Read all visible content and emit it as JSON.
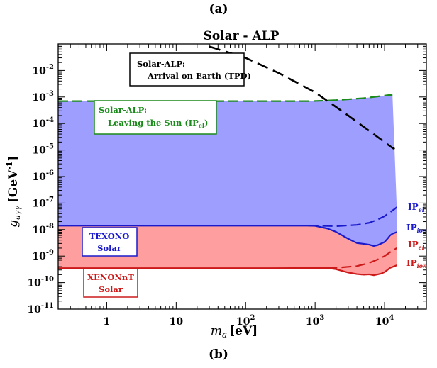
{
  "figure": {
    "top_label": "(a)",
    "bottom_label": "(b)"
  },
  "chart_data": {
    "type": "area",
    "title": "Solar - ALP",
    "xlabel_main": "m",
    "xlabel_sub": "a",
    "xlabel_unit": "[eV]",
    "ylabel_main": "g",
    "ylabel_sub": "aγγ",
    "ylabel_unit": "[GeV",
    "ylabel_unit_exp": "-1",
    "ylabel_unit_close": "]",
    "x_scale": "log",
    "y_scale": "log",
    "xlim": [
      0.2,
      40000
    ],
    "ylim": [
      1e-11,
      0.1
    ],
    "x_ticks": [
      {
        "v": 1,
        "base": "1",
        "exp": ""
      },
      {
        "v": 10,
        "base": "10",
        "exp": ""
      },
      {
        "v": 100,
        "base": "10",
        "exp": "2"
      },
      {
        "v": 1000,
        "base": "10",
        "exp": "3"
      },
      {
        "v": 10000,
        "base": "10",
        "exp": "4"
      }
    ],
    "y_ticks": [
      {
        "v": 1e-11,
        "base": "10",
        "exp": "-11"
      },
      {
        "v": 1e-10,
        "base": "10",
        "exp": "-10"
      },
      {
        "v": 1e-09,
        "base": "10",
        "exp": "-9"
      },
      {
        "v": 1e-08,
        "base": "10",
        "exp": "-8"
      },
      {
        "v": 1e-07,
        "base": "10",
        "exp": "-7"
      },
      {
        "v": 1e-06,
        "base": "10",
        "exp": "-6"
      },
      {
        "v": 1e-05,
        "base": "10",
        "exp": "-5"
      },
      {
        "v": 0.0001,
        "base": "10",
        "exp": "-4"
      },
      {
        "v": 0.001,
        "base": "10",
        "exp": "-3"
      },
      {
        "v": 0.01,
        "base": "10",
        "exp": "-2"
      }
    ],
    "series": [
      {
        "name": "Solar-ALP: Leaving the Sun (IPel)",
        "color": "#1a8a1a",
        "fill": "#9e9eff",
        "style": "dashed",
        "x": [
          0.2,
          1,
          10,
          100,
          900,
          2000,
          5000,
          8000,
          12000,
          13000,
          15000
        ],
        "y": [
          0.0007,
          0.0007,
          0.0007,
          0.0007,
          0.0007,
          0.00076,
          0.0009,
          0.00105,
          0.0012,
          0.0012,
          6e-08
        ]
      },
      {
        "name": "Solar-ALP: Arrival on Earth (TPD)",
        "color": "#000000",
        "style": "dashed",
        "x": [
          30,
          100,
          300,
          1000,
          3000,
          10000,
          13000,
          14000
        ],
        "y": [
          0.08,
          0.03,
          0.008,
          0.0015,
          0.0002,
          2e-05,
          1.2e-05,
          1.1e-05
        ]
      },
      {
        "name": "TEXONO Solar IPion",
        "color": "#1a1acc",
        "style": "solid",
        "x": [
          0.2,
          100,
          800,
          1000,
          1500,
          2000,
          3000,
          4000,
          5000,
          6000,
          7000,
          8000,
          9000,
          10000,
          11000,
          12000,
          13000,
          15000
        ],
        "y": [
          1.4e-08,
          1.4e-08,
          1.4e-08,
          1.38e-08,
          1.1e-08,
          8.2e-09,
          4.5e-09,
          3.1e-09,
          2.9e-09,
          2.7e-09,
          2.4e-09,
          2.6e-09,
          3e-09,
          3.4e-09,
          4.5e-09,
          6e-09,
          7e-09,
          8e-09
        ]
      },
      {
        "name": "TEXONO Solar IPel",
        "color": "#1a1acc",
        "style": "dashed",
        "x": [
          800,
          1000,
          2000,
          4000,
          6000,
          8000,
          10000,
          12000,
          14000,
          15000
        ],
        "y": [
          1.4e-08,
          1.4e-08,
          1.35e-08,
          1.5e-08,
          1.8e-08,
          2.4e-08,
          3.2e-08,
          4.5e-08,
          6e-08,
          7e-08
        ]
      },
      {
        "name": "XENONnT Solar IPion",
        "color": "#cc1a1a",
        "fill": "#ff9e9e",
        "style": "solid",
        "x": [
          0.2,
          100,
          1000,
          1500,
          2000,
          3000,
          4000,
          5000,
          6000,
          7000,
          8000,
          9000,
          10000,
          11000,
          12000,
          14000,
          15000
        ],
        "y": [
          3.5e-10,
          3.5e-10,
          3.55e-10,
          3.55e-10,
          3.2e-10,
          2.4e-10,
          2.1e-10,
          2e-10,
          2.05e-10,
          1.9e-10,
          2.05e-10,
          2.2e-10,
          2.5e-10,
          3e-10,
          3.6e-10,
          4.2e-10,
          4.5e-10
        ]
      },
      {
        "name": "XENONnT Solar IPel",
        "color": "#cc1a1a",
        "style": "dashed",
        "x": [
          1500,
          2000,
          4000,
          6000,
          8000,
          10000,
          12000,
          14000,
          15000
        ],
        "y": [
          3.55e-10,
          3.6e-10,
          4.2e-10,
          5.5e-10,
          7.5e-10,
          1e-09,
          1.4e-09,
          1.8e-09,
          2e-09
        ]
      }
    ],
    "annotations": {
      "tpd_line1": "Solar-ALP:",
      "tpd_line2": "Arrival on Earth (TPD)",
      "leave_line1": "Solar-ALP:",
      "leave_line2": "Leaving the Sun (IP",
      "leave_sub": "el",
      "leave_close": ")",
      "texono_line1": "TEXONO",
      "texono_line2": "Solar",
      "xenon_line1": "XENONnT",
      "xenon_line2": "Solar",
      "ip_base": "IP",
      "ip_el": "el",
      "ip_ion": "ion"
    },
    "colors": {
      "blue_region": "#9e9eff",
      "red_region": "#ff9e9e",
      "green": "#1a8a1a",
      "blue": "#1a1acc",
      "red": "#cc1a1a",
      "black": "#000000"
    },
    "grid": false
  }
}
